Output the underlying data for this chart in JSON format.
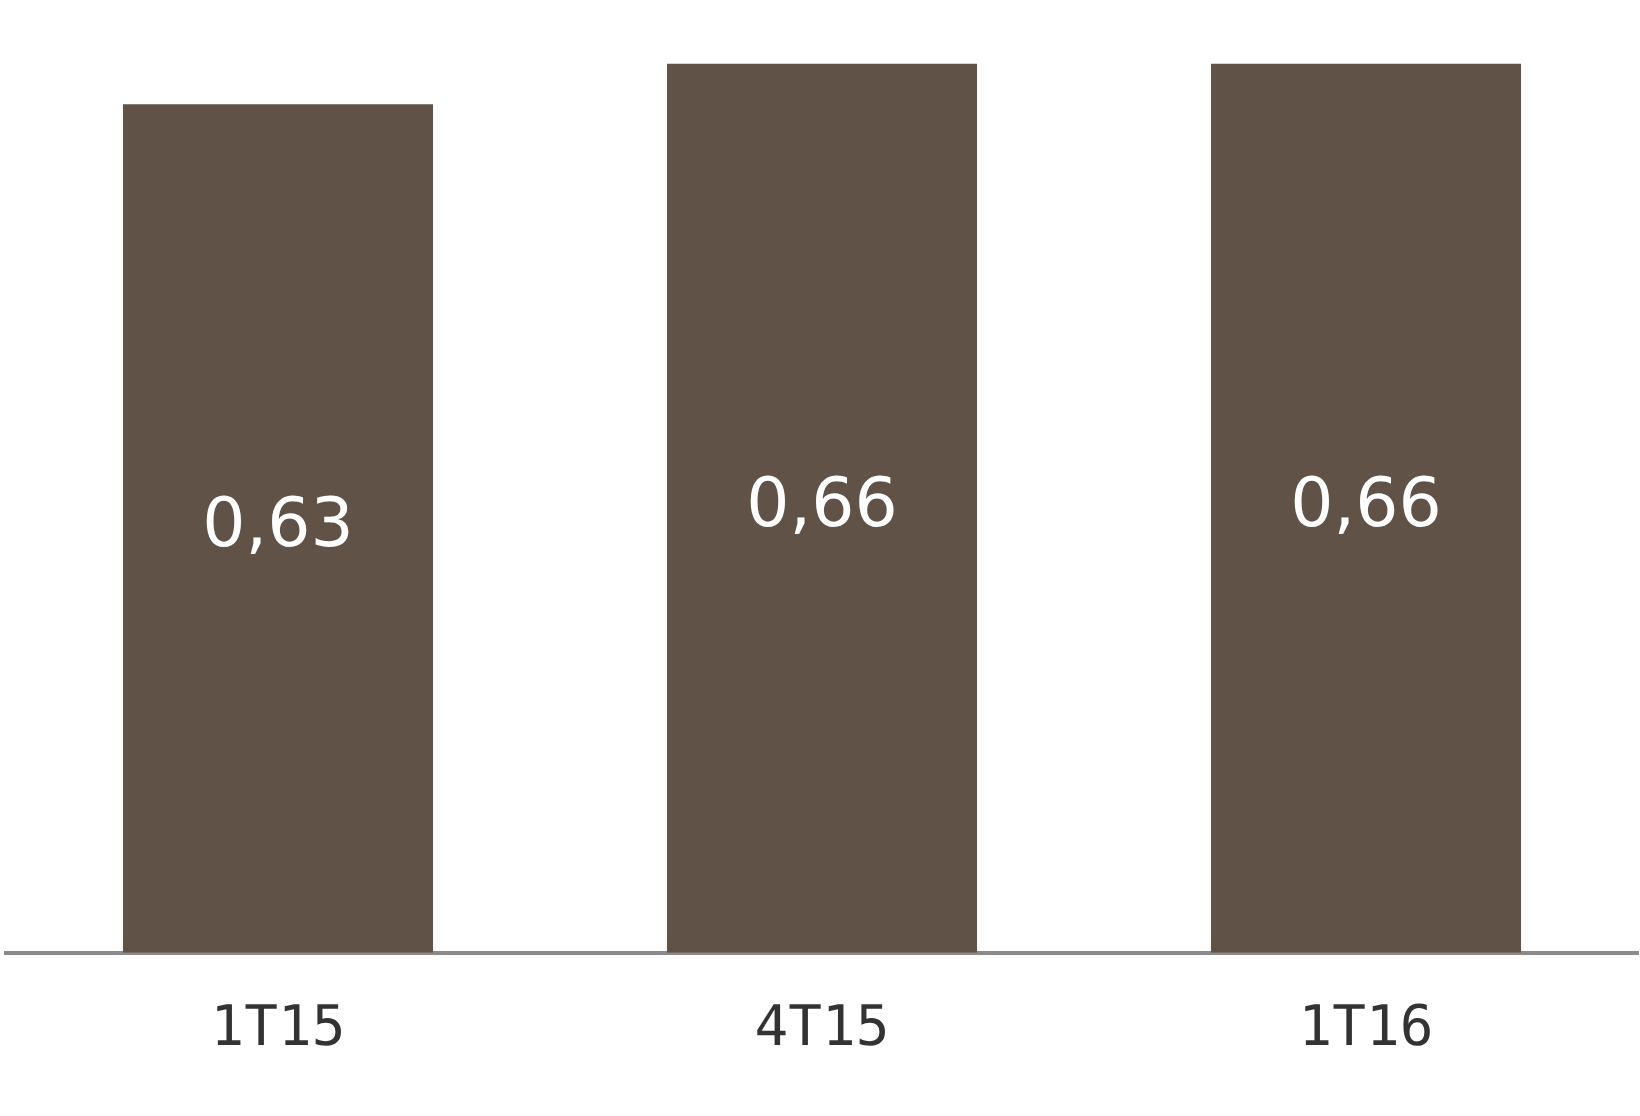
{
  "chart_data": {
    "type": "bar",
    "categories": [
      "1T15",
      "4T15",
      "1T16"
    ],
    "values": [
      0.63,
      0.66,
      0.66
    ],
    "value_labels": [
      "0,63",
      "0,66",
      "0,66"
    ],
    "color": "#615247",
    "tick_labels": "x",
    "grid": false,
    "legend": false
  }
}
